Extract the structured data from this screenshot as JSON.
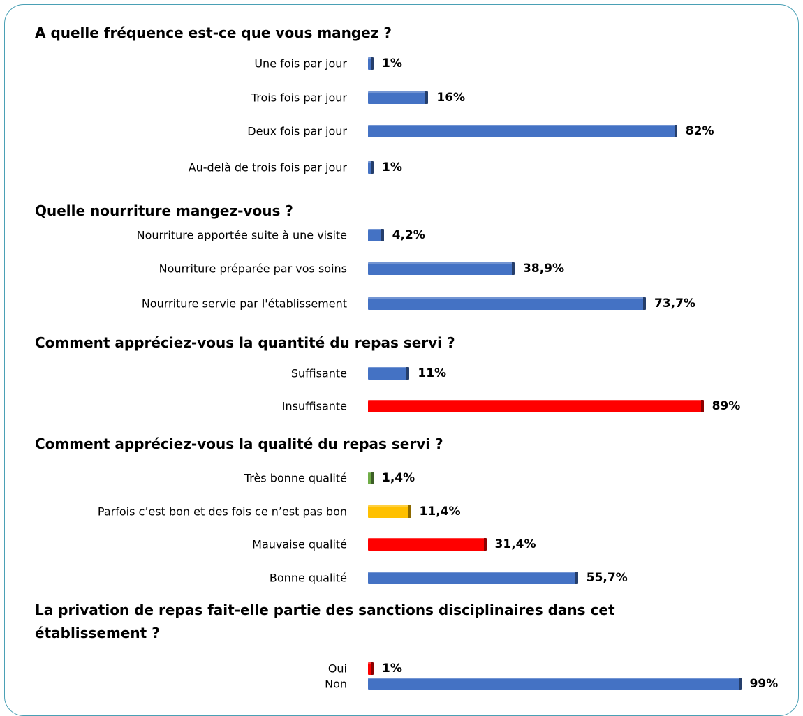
{
  "chart_data": [
    {
      "type": "hbar",
      "title": "A quelle fréquence est-ce que vous mangez ?",
      "categories": [
        "Une fois par jour",
        "Trois fois par jour",
        "Deux fois par jour",
        "Au-delà de trois fois par jour"
      ],
      "values": [
        1,
        16,
        82,
        1
      ],
      "value_labels": [
        "1%",
        "16%",
        "82%",
        "1%"
      ],
      "colors": [
        "#4472c4",
        "#4472c4",
        "#4472c4",
        "#4472c4"
      ]
    },
    {
      "type": "hbar",
      "title": "Quelle nourriture mangez-vous ?",
      "categories": [
        "Nourriture apportée suite à une visite",
        "Nourriture préparée par vos soins",
        "Nourriture servie par l'établissement"
      ],
      "values": [
        4.2,
        38.9,
        73.7
      ],
      "value_labels": [
        "4,2%",
        "38,9%",
        "73,7%"
      ],
      "colors": [
        "#4472c4",
        "#4472c4",
        "#4472c4"
      ]
    },
    {
      "type": "hbar",
      "title": "Comment appréciez-vous la quantité du repas servi ?",
      "categories": [
        "Suffisante",
        "Insuffisante"
      ],
      "values": [
        11,
        89
      ],
      "value_labels": [
        "11%",
        "89%"
      ],
      "colors": [
        "#4472c4",
        "#ff0000"
      ]
    },
    {
      "type": "hbar",
      "title": "Comment appréciez-vous la qualité du repas servi ?",
      "categories": [
        "Très bonne qualité",
        "Parfois c’est bon et des fois ce n’est pas bon",
        "Mauvaise qualité",
        "Bonne qualité"
      ],
      "values": [
        1.4,
        11.4,
        31.4,
        55.7
      ],
      "value_labels": [
        "1,4%",
        "11,4%",
        "31,4%",
        "55,7%"
      ],
      "colors": [
        "#70ad47",
        "#ffc000",
        "#ff0000",
        "#4472c4"
      ]
    },
    {
      "type": "hbar",
      "title": "La privation de repas fait-elle partie des sanctions disciplinaires dans cet établissement ?",
      "categories": [
        "Oui",
        "Non"
      ],
      "values": [
        1,
        99
      ],
      "value_labels": [
        "1%",
        "99%"
      ],
      "colors": [
        "#ff0000",
        "#4472c4"
      ]
    }
  ]
}
